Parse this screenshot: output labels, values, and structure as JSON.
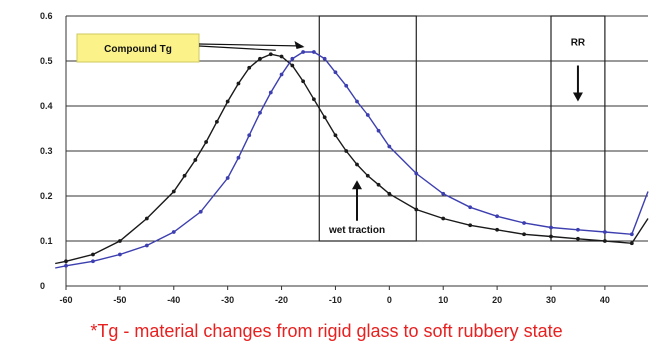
{
  "chart_data": {
    "type": "line",
    "xlim": [
      -60,
      48
    ],
    "ylim": [
      0,
      0.6
    ],
    "x_ticks": [
      -60,
      -50,
      -40,
      -30,
      -20,
      -10,
      0,
      10,
      20,
      30,
      40
    ],
    "x_tick_labels": [
      "-60",
      "-50",
      "-40",
      "-30",
      "-20",
      "-10",
      "0",
      "10",
      "20",
      "30",
      "40"
    ],
    "y_ticks": [
      0,
      0.1,
      0.2,
      0.3,
      0.4,
      0.5,
      0.6
    ],
    "y_tick_labels": [
      "0",
      "0.1",
      "0.2",
      "0.3",
      "0.4",
      "0.5",
      "0.6"
    ],
    "grid": "horizontal",
    "series": [
      {
        "color": "#1a1a1a",
        "x": [
          -62,
          -60,
          -55,
          -50,
          -45,
          -40,
          -38,
          -36,
          -34,
          -32,
          -30,
          -28,
          -26,
          -24,
          -22,
          -20,
          -18,
          -16,
          -14,
          -12,
          -10,
          -8,
          -6,
          -4,
          -2,
          0,
          5,
          10,
          15,
          20,
          25,
          30,
          35,
          40,
          45,
          48
        ],
        "y": [
          0.05,
          0.055,
          0.07,
          0.1,
          0.15,
          0.21,
          0.245,
          0.28,
          0.32,
          0.365,
          0.41,
          0.45,
          0.485,
          0.505,
          0.515,
          0.51,
          0.49,
          0.455,
          0.415,
          0.375,
          0.335,
          0.3,
          0.27,
          0.245,
          0.225,
          0.205,
          0.17,
          0.15,
          0.135,
          0.125,
          0.115,
          0.11,
          0.105,
          0.1,
          0.095,
          0.15
        ]
      },
      {
        "color": "#3d3fb0",
        "x": [
          -62,
          -60,
          -55,
          -50,
          -45,
          -40,
          -35,
          -30,
          -28,
          -26,
          -24,
          -22,
          -20,
          -18,
          -16,
          -14,
          -12,
          -10,
          -8,
          -6,
          -4,
          -2,
          0,
          5,
          10,
          15,
          20,
          25,
          30,
          35,
          40,
          45,
          48
        ],
        "y": [
          0.04,
          0.045,
          0.055,
          0.07,
          0.09,
          0.12,
          0.165,
          0.24,
          0.285,
          0.335,
          0.385,
          0.43,
          0.47,
          0.505,
          0.52,
          0.52,
          0.505,
          0.475,
          0.445,
          0.41,
          0.38,
          0.345,
          0.31,
          0.25,
          0.205,
          0.175,
          0.155,
          0.14,
          0.13,
          0.125,
          0.12,
          0.115,
          0.21
        ]
      }
    ],
    "annotations": [
      {
        "id": "compound-tg",
        "text": "Compound Tg",
        "kind": "highlight-label"
      },
      {
        "id": "wet-traction",
        "text": "wet traction",
        "kind": "boxed-region",
        "x_range": [
          -13,
          5
        ],
        "y_range": [
          0.1,
          0.6
        ]
      },
      {
        "id": "rr",
        "text": "RR",
        "kind": "boxed-region",
        "x_range": [
          30,
          40
        ],
        "y_range": [
          0.1,
          0.6
        ]
      }
    ],
    "footnote": "*Tg - material changes from rigid glass to soft rubbery state"
  },
  "colors": {
    "footnote": "#e8201f",
    "callout_fill": "#fbf38a"
  }
}
